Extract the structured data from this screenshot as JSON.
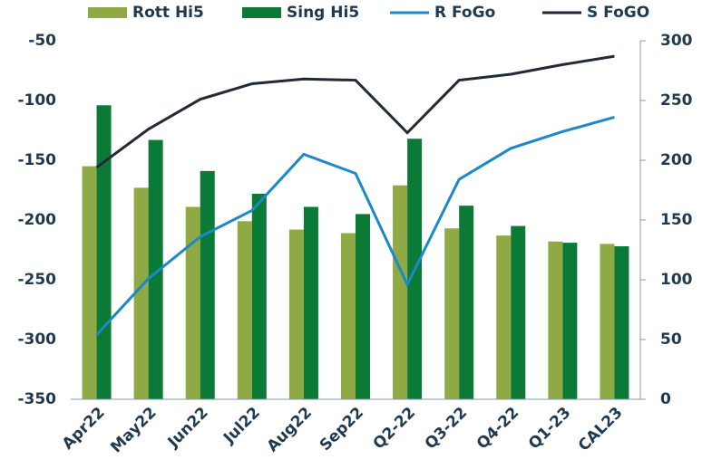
{
  "chart_data": {
    "type": "bar-line",
    "categories": [
      "Apr22",
      "May22",
      "Jun22",
      "Jul22",
      "Aug22",
      "Sep22",
      "Q2-22",
      "Q3-22",
      "Q4-22",
      "Q1-23",
      "CAL23"
    ],
    "series": [
      {
        "name": "Rott Hi5",
        "type": "bar",
        "color": "#8faa45",
        "values": [
          -155,
          -173,
          -189,
          -201,
          -208,
          -211,
          -171,
          -207,
          -213,
          -218,
          -220
        ]
      },
      {
        "name": "Sing Hi5",
        "type": "bar",
        "color": "#0b7a36",
        "values": [
          -104,
          -133,
          -159,
          -178,
          -189,
          -195,
          -132,
          -188,
          -205,
          -219,
          -222
        ]
      },
      {
        "name": "R FoGo",
        "type": "line",
        "axis": "y2",
        "color": "#1a88c9",
        "values": [
          54,
          101,
          136,
          158,
          205,
          189,
          96,
          184,
          210,
          224,
          236
        ]
      },
      {
        "name": "S FoGO",
        "type": "line",
        "axis": "y2",
        "color": "#222a35",
        "values": [
          194,
          226,
          251,
          264,
          268,
          267,
          223,
          267,
          272,
          280,
          287
        ]
      }
    ],
    "ylim": [
      -350,
      -50
    ],
    "yticks": [
      -350,
      -300,
      -250,
      -200,
      -150,
      -100,
      -50
    ],
    "y2lim": [
      0,
      300
    ],
    "y2ticks": [
      0,
      50,
      100,
      150,
      200,
      250,
      300
    ],
    "legend": "top"
  }
}
